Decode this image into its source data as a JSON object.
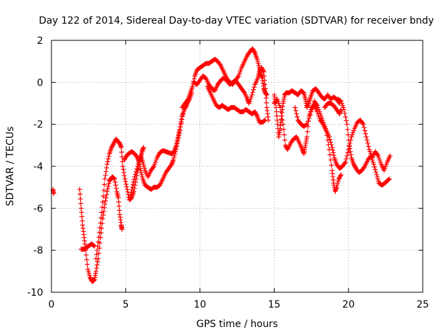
{
  "chart_data": {
    "type": "scatter",
    "title": "Day 122 of 2014, Sidereal Day-to-day VTEC variation (SDTVAR) for receiver bndy",
    "xlabel": "GPS time / hours",
    "ylabel": "SDTVAR / TECUs",
    "xlim": [
      0,
      25
    ],
    "ylim": [
      -10,
      2
    ],
    "x_ticks": [
      0,
      5,
      10,
      15,
      20,
      25
    ],
    "y_ticks": [
      -10,
      -8,
      -6,
      -4,
      -2,
      0,
      2
    ],
    "x_tick_labels": [
      "0",
      "5",
      "10",
      "15",
      "20",
      "25"
    ],
    "y_tick_labels": [
      "-10",
      "-8",
      "-6",
      "-4",
      "-2",
      "0",
      "2"
    ],
    "grid": true,
    "marker": "+",
    "color": "#ff0000",
    "series": [
      {
        "name": "t0",
        "points": [
          [
            0.1,
            -5.1
          ],
          [
            0.15,
            -5.3
          ]
        ]
      },
      {
        "name": "s1",
        "points": [
          [
            1.9,
            -5.1
          ],
          [
            2.0,
            -6.0
          ],
          [
            2.1,
            -6.8
          ],
          [
            2.2,
            -7.4
          ],
          [
            2.3,
            -8.0
          ],
          [
            2.45,
            -8.9
          ],
          [
            2.6,
            -9.3
          ],
          [
            2.75,
            -9.5
          ],
          [
            2.9,
            -9.4
          ],
          [
            3.0,
            -9.0
          ],
          [
            3.15,
            -8.4
          ],
          [
            3.3,
            -7.4
          ],
          [
            3.45,
            -6.5
          ],
          [
            3.6,
            -5.8
          ],
          [
            3.75,
            -5.2
          ],
          [
            3.9,
            -4.7
          ],
          [
            4.0,
            -4.6
          ],
          [
            4.1,
            -4.5
          ],
          [
            4.25,
            -4.6
          ],
          [
            4.4,
            -5.2
          ],
          [
            4.5,
            -5.5
          ],
          [
            4.6,
            -6.3
          ],
          [
            4.7,
            -6.8
          ],
          [
            4.75,
            -7.0
          ]
        ]
      },
      {
        "name": "s1b",
        "points": [
          [
            2.0,
            -7.95
          ],
          [
            2.2,
            -7.95
          ],
          [
            2.3,
            -7.9
          ],
          [
            2.5,
            -7.8
          ],
          [
            2.7,
            -7.7
          ],
          [
            2.9,
            -7.8
          ]
        ]
      },
      {
        "name": "s2",
        "points": [
          [
            3.0,
            -8.4
          ],
          [
            3.15,
            -7.6
          ],
          [
            3.3,
            -6.7
          ],
          [
            3.45,
            -5.7
          ],
          [
            3.6,
            -4.6
          ],
          [
            3.75,
            -3.9
          ],
          [
            3.9,
            -3.4
          ],
          [
            4.05,
            -3.1
          ],
          [
            4.2,
            -2.9
          ],
          [
            4.35,
            -2.7
          ],
          [
            4.45,
            -2.8
          ],
          [
            4.6,
            -2.9
          ],
          [
            4.7,
            -3.1
          ],
          [
            4.8,
            -4.0
          ],
          [
            4.95,
            -4.6
          ],
          [
            5.1,
            -5.1
          ],
          [
            5.25,
            -5.6
          ],
          [
            5.4,
            -5.5
          ],
          [
            5.55,
            -5.2
          ],
          [
            5.7,
            -4.6
          ],
          [
            5.85,
            -4.0
          ],
          [
            6.0,
            -3.6
          ],
          [
            6.1,
            -3.3
          ],
          [
            6.2,
            -3.1
          ]
        ]
      },
      {
        "name": "s3",
        "points": [
          [
            4.9,
            -3.7
          ],
          [
            5.05,
            -3.5
          ],
          [
            5.2,
            -3.4
          ],
          [
            5.4,
            -3.3
          ],
          [
            5.6,
            -3.4
          ],
          [
            5.8,
            -3.6
          ],
          [
            5.9,
            -3.8
          ],
          [
            6.0,
            -4.2
          ],
          [
            6.15,
            -4.6
          ],
          [
            6.3,
            -4.9
          ],
          [
            6.5,
            -5.0
          ],
          [
            6.7,
            -5.1
          ],
          [
            6.9,
            -5.0
          ],
          [
            7.1,
            -5.0
          ],
          [
            7.3,
            -4.9
          ],
          [
            7.5,
            -4.6
          ],
          [
            7.7,
            -4.3
          ],
          [
            7.9,
            -4.1
          ],
          [
            8.1,
            -3.9
          ],
          [
            8.2,
            -3.7
          ],
          [
            8.35,
            -3.3
          ],
          [
            8.5,
            -2.8
          ],
          [
            8.65,
            -2.3
          ],
          [
            8.8,
            -1.6
          ],
          [
            8.95,
            -1.3
          ],
          [
            9.1,
            -1.1
          ],
          [
            9.3,
            -0.8
          ],
          [
            9.45,
            -0.5
          ]
        ]
      },
      {
        "name": "s4",
        "points": [
          [
            5.3,
            -5.5
          ],
          [
            5.45,
            -5.0
          ],
          [
            5.6,
            -4.5
          ],
          [
            5.8,
            -4.0
          ],
          [
            6.0,
            -3.5
          ],
          [
            6.15,
            -3.8
          ],
          [
            6.3,
            -4.2
          ],
          [
            6.5,
            -4.5
          ],
          [
            6.7,
            -4.2
          ],
          [
            6.9,
            -4.0
          ],
          [
            7.1,
            -3.6
          ],
          [
            7.3,
            -3.35
          ],
          [
            7.5,
            -3.25
          ],
          [
            7.7,
            -3.3
          ],
          [
            7.9,
            -3.35
          ],
          [
            8.1,
            -3.4
          ],
          [
            8.25,
            -3.3
          ],
          [
            8.4,
            -3.0
          ],
          [
            8.55,
            -2.5
          ],
          [
            8.7,
            -2.0
          ],
          [
            8.85,
            -1.5
          ]
        ]
      },
      {
        "name": "s5",
        "points": [
          [
            8.8,
            -1.2
          ],
          [
            9.0,
            -1.0
          ],
          [
            9.2,
            -0.8
          ],
          [
            9.35,
            -0.5
          ],
          [
            9.5,
            -0.2
          ],
          [
            9.65,
            0.3
          ],
          [
            9.8,
            0.6
          ],
          [
            10.0,
            0.7
          ],
          [
            10.2,
            0.8
          ],
          [
            10.4,
            0.9
          ],
          [
            10.6,
            0.9
          ],
          [
            10.8,
            1.0
          ],
          [
            11.0,
            1.1
          ],
          [
            11.2,
            1.0
          ],
          [
            11.4,
            0.8
          ],
          [
            11.6,
            0.5
          ],
          [
            11.8,
            0.2
          ],
          [
            12.0,
            0.0
          ],
          [
            12.2,
            -0.1
          ],
          [
            12.4,
            0.1
          ],
          [
            12.6,
            0.3
          ],
          [
            12.8,
            0.7
          ],
          [
            13.0,
            1.0
          ],
          [
            13.2,
            1.3
          ],
          [
            13.4,
            1.5
          ],
          [
            13.55,
            1.6
          ],
          [
            13.7,
            1.4
          ],
          [
            13.85,
            1.1
          ],
          [
            14.0,
            0.7
          ],
          [
            14.1,
            0.4
          ],
          [
            14.2,
            0.2
          ],
          [
            14.3,
            -0.3
          ],
          [
            14.4,
            -0.5
          ],
          [
            14.5,
            -0.6
          ]
        ]
      },
      {
        "name": "s6",
        "points": [
          [
            9.6,
            0.0
          ],
          [
            9.8,
            -0.1
          ],
          [
            10.0,
            0.1
          ],
          [
            10.2,
            0.3
          ],
          [
            10.4,
            0.2
          ],
          [
            10.6,
            -0.1
          ],
          [
            10.8,
            -0.3
          ],
          [
            11.0,
            -0.4
          ],
          [
            11.2,
            -0.1
          ],
          [
            11.4,
            0.1
          ],
          [
            11.6,
            0.2
          ],
          [
            11.8,
            0.1
          ],
          [
            12.0,
            -0.1
          ],
          [
            12.2,
            0.0
          ],
          [
            12.4,
            0.1
          ],
          [
            12.6,
            -0.1
          ],
          [
            12.8,
            -0.3
          ],
          [
            13.0,
            -0.5
          ],
          [
            13.2,
            -0.8
          ],
          [
            13.3,
            -1.0
          ],
          [
            13.5,
            -0.6
          ],
          [
            13.7,
            -0.1
          ],
          [
            13.9,
            0.2
          ],
          [
            14.0,
            0.5
          ],
          [
            14.15,
            0.7
          ],
          [
            14.3,
            0.5
          ],
          [
            14.4,
            -0.3
          ],
          [
            14.5,
            -1.2
          ],
          [
            14.6,
            -1.8
          ]
        ]
      },
      {
        "name": "s7",
        "points": [
          [
            10.5,
            -0.2
          ],
          [
            10.7,
            -0.5
          ],
          [
            10.9,
            -0.8
          ],
          [
            11.1,
            -1.1
          ],
          [
            11.3,
            -1.2
          ],
          [
            11.5,
            -1.1
          ],
          [
            11.7,
            -1.2
          ],
          [
            11.9,
            -1.3
          ],
          [
            12.1,
            -1.2
          ],
          [
            12.3,
            -1.2
          ],
          [
            12.5,
            -1.3
          ],
          [
            12.7,
            -1.4
          ],
          [
            12.9,
            -1.4
          ],
          [
            13.1,
            -1.3
          ],
          [
            13.3,
            -1.4
          ],
          [
            13.5,
            -1.5
          ],
          [
            13.7,
            -1.4
          ],
          [
            13.85,
            -1.6
          ],
          [
            14.0,
            -1.9
          ],
          [
            14.2,
            -1.9
          ],
          [
            14.4,
            -1.8
          ]
        ]
      },
      {
        "name": "s8",
        "points": [
          [
            15.0,
            -0.6
          ],
          [
            15.1,
            -1.0
          ],
          [
            15.2,
            -1.8
          ],
          [
            15.3,
            -2.6
          ],
          [
            15.4,
            -2.2
          ],
          [
            15.5,
            -1.6
          ],
          [
            15.6,
            -1.0
          ],
          [
            15.7,
            -0.6
          ],
          [
            15.8,
            -0.5
          ],
          [
            16.0,
            -0.5
          ],
          [
            16.2,
            -0.4
          ],
          [
            16.4,
            -0.5
          ],
          [
            16.6,
            -0.6
          ],
          [
            16.8,
            -0.4
          ],
          [
            17.0,
            -0.5
          ],
          [
            17.1,
            -0.8
          ],
          [
            17.2,
            -1.2
          ],
          [
            17.3,
            -1.0
          ],
          [
            17.45,
            -0.7
          ],
          [
            17.6,
            -0.4
          ],
          [
            17.8,
            -0.3
          ],
          [
            18.0,
            -0.5
          ],
          [
            18.2,
            -0.7
          ],
          [
            18.4,
            -0.8
          ],
          [
            18.6,
            -0.6
          ],
          [
            18.8,
            -0.8
          ],
          [
            19.0,
            -0.7
          ],
          [
            19.2,
            -0.8
          ],
          [
            19.4,
            -1.0
          ]
        ]
      },
      {
        "name": "s9",
        "points": [
          [
            15.0,
            -1.0
          ],
          [
            15.2,
            -0.8
          ],
          [
            15.4,
            -1.2
          ],
          [
            15.6,
            -2.0
          ],
          [
            15.75,
            -3.0
          ],
          [
            15.9,
            -3.2
          ],
          [
            16.1,
            -2.9
          ],
          [
            16.3,
            -2.7
          ],
          [
            16.5,
            -2.6
          ],
          [
            16.7,
            -2.9
          ],
          [
            16.9,
            -3.2
          ],
          [
            17.0,
            -3.4
          ],
          [
            17.1,
            -3.0
          ],
          [
            17.2,
            -2.6
          ],
          [
            17.35,
            -1.6
          ],
          [
            17.5,
            -1.2
          ],
          [
            17.7,
            -1.1
          ],
          [
            17.9,
            -1.4
          ],
          [
            18.1,
            -1.8
          ],
          [
            18.3,
            -2.0
          ],
          [
            18.5,
            -2.3
          ],
          [
            18.7,
            -2.6
          ],
          [
            18.9,
            -3.1
          ],
          [
            19.05,
            -3.6
          ],
          [
            19.2,
            -3.9
          ],
          [
            19.4,
            -4.1
          ],
          [
            19.6,
            -4.0
          ],
          [
            19.8,
            -3.8
          ],
          [
            20.0,
            -3.2
          ],
          [
            20.2,
            -2.6
          ],
          [
            20.4,
            -2.2
          ],
          [
            20.6,
            -1.9
          ],
          [
            20.8,
            -1.8
          ],
          [
            21.0,
            -2.0
          ],
          [
            21.2,
            -2.6
          ],
          [
            21.4,
            -3.2
          ],
          [
            21.6,
            -3.6
          ],
          [
            21.8,
            -3.3
          ],
          [
            22.0,
            -3.5
          ],
          [
            22.2,
            -3.9
          ],
          [
            22.4,
            -4.2
          ],
          [
            22.6,
            -3.8
          ],
          [
            22.8,
            -3.5
          ]
        ]
      },
      {
        "name": "s10",
        "points": [
          [
            16.4,
            -1.2
          ],
          [
            16.6,
            -1.8
          ],
          [
            16.8,
            -2.0
          ],
          [
            17.0,
            -2.1
          ],
          [
            17.2,
            -2.0
          ],
          [
            17.5,
            -1.4
          ],
          [
            17.7,
            -0.9
          ],
          [
            17.9,
            -1.1
          ],
          [
            18.1,
            -1.5
          ],
          [
            18.3,
            -1.9
          ],
          [
            18.5,
            -2.3
          ],
          [
            18.7,
            -3.2
          ],
          [
            18.9,
            -4.2
          ],
          [
            19.0,
            -4.8
          ],
          [
            19.1,
            -5.2
          ],
          [
            19.2,
            -5.0
          ],
          [
            19.35,
            -4.6
          ],
          [
            19.5,
            -4.4
          ]
        ]
      },
      {
        "name": "s11",
        "points": [
          [
            19.3,
            -0.8
          ],
          [
            19.5,
            -0.9
          ],
          [
            19.7,
            -1.3
          ],
          [
            19.9,
            -2.0
          ],
          [
            20.05,
            -3.0
          ],
          [
            20.2,
            -3.6
          ],
          [
            20.35,
            -3.9
          ],
          [
            20.5,
            -4.1
          ],
          [
            20.7,
            -4.3
          ],
          [
            20.9,
            -4.2
          ],
          [
            21.1,
            -4.0
          ],
          [
            21.3,
            -3.7
          ],
          [
            21.5,
            -3.5
          ],
          [
            21.7,
            -3.9
          ],
          [
            21.9,
            -4.4
          ],
          [
            22.05,
            -4.8
          ],
          [
            22.25,
            -4.9
          ],
          [
            22.45,
            -4.8
          ],
          [
            22.6,
            -4.7
          ],
          [
            22.75,
            -4.6
          ]
        ]
      },
      {
        "name": "s12",
        "points": [
          [
            18.4,
            -1.2
          ],
          [
            18.6,
            -1.0
          ],
          [
            18.8,
            -1.0
          ],
          [
            19.0,
            -1.1
          ],
          [
            19.2,
            -1.3
          ],
          [
            19.4,
            -1.5
          ],
          [
            19.5,
            -1.3
          ]
        ]
      }
    ]
  }
}
